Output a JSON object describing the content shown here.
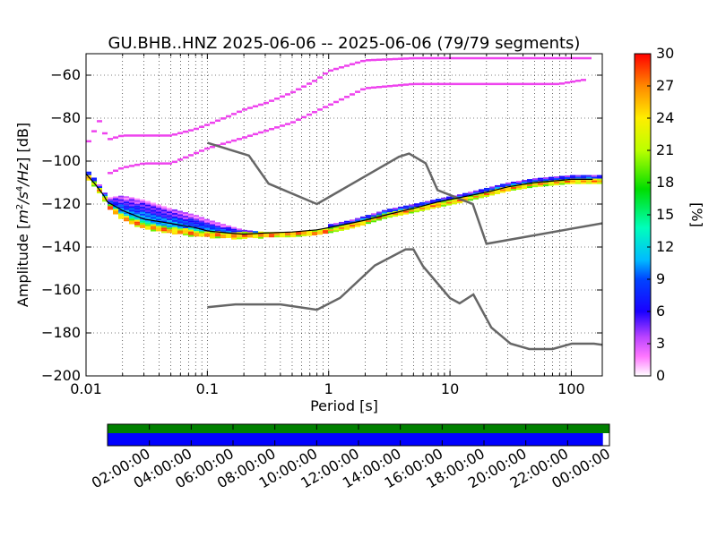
{
  "chart_data": [
    {
      "type": "heatmap",
      "title": "GU.BHB..HNZ   2025-06-06 -- 2025-06-06  (79/79 segments)",
      "xlabel": "Period [s]",
      "ylabel": "Amplitude [m²/s⁴/Hz] [dB]",
      "ylabel_parts": {
        "prefix": "Amplitude [",
        "unit": "m",
        "sq": "2",
        "mid": "/s",
        "four": "4",
        "hz": "/Hz",
        "suffix": "] [dB]"
      },
      "x_scale": "log",
      "xlim": [
        0.01,
        180
      ],
      "ylim": [
        -200,
        -50
      ],
      "x_tick_labels": [
        {
          "value": 0.01,
          "label": "0.01"
        },
        {
          "value": 0.1,
          "label": "0.1"
        },
        {
          "value": 1,
          "label": "1"
        },
        {
          "value": 10,
          "label": "10"
        },
        {
          "value": 100,
          "label": "100"
        }
      ],
      "y_ticks": [
        -200,
        -180,
        -160,
        -140,
        -120,
        -100,
        -80,
        -60
      ],
      "grid": true,
      "colorbar": {
        "label": "[%]",
        "range": [
          0,
          30
        ],
        "ticks": [
          0,
          3,
          6,
          9,
          12,
          15,
          18,
          21,
          24,
          27,
          30
        ]
      },
      "noise_models": {
        "color": "#666666",
        "high_noise_model": {
          "period": [
            0.1,
            0.22,
            0.32,
            0.8,
            3.8,
            4.6,
            6.3,
            7.9,
            15.4,
            20,
            354.8
          ],
          "db": [
            -91.5,
            -97.4,
            -110.5,
            -120,
            -98,
            -96.5,
            -101,
            -113.5,
            -120,
            -138.5,
            -126
          ]
        },
        "low_noise_model": {
          "period": [
            0.1,
            0.17,
            0.4,
            0.8,
            1.24,
            2.4,
            4.3,
            5,
            6,
            10,
            12,
            15.6,
            21.9,
            31.6,
            45,
            70,
            101,
            154,
            328
          ],
          "db": [
            -168,
            -166.7,
            -166.7,
            -169.2,
            -163.7,
            -148.6,
            -141.1,
            -141.1,
            -149,
            -163.8,
            -166.2,
            -162.1,
            -177.5,
            -185,
            -187.5,
            -187.5,
            -185,
            -185,
            -187.5
          ]
        }
      },
      "mean_psd": {
        "color": "#000000",
        "period": [
          0.01,
          0.012,
          0.014,
          0.015,
          0.02,
          0.03,
          0.05,
          0.08,
          0.1,
          0.15,
          0.2,
          0.3,
          0.5,
          0.8,
          1,
          1.5,
          2,
          3,
          5,
          8,
          12,
          20,
          30,
          50,
          80,
          100,
          150
        ],
        "db": [
          -106,
          -111,
          -116,
          -119,
          -123,
          -127,
          -129,
          -131,
          -132.5,
          -133.5,
          -134,
          -133.5,
          -133,
          -132,
          -131,
          -129,
          -127.5,
          -125,
          -122,
          -119,
          -117,
          -114.5,
          -112,
          -110,
          -109,
          -108.5,
          -108.5
        ]
      },
      "probability_ridge": {
        "period": [
          0.01,
          0.012,
          0.014,
          0.015,
          0.02,
          0.03,
          0.05,
          0.08,
          0.1,
          0.15,
          0.2,
          0.3,
          0.5,
          0.8,
          1,
          1.5,
          2,
          3,
          5,
          8,
          12,
          20,
          30,
          50,
          80,
          100,
          150
        ],
        "db": [
          -106,
          -111,
          -116,
          -120,
          -126,
          -130,
          -132,
          -133.5,
          -134,
          -134.5,
          -134.5,
          -134,
          -133.5,
          -133,
          -132,
          -130,
          -128,
          -125,
          -122.5,
          -120,
          -118,
          -115,
          -112.5,
          -110.5,
          -109.5,
          -109,
          -109
        ]
      },
      "probability_upper_band": {
        "period": [
          0.015,
          0.02,
          0.03,
          0.05,
          0.08,
          0.1,
          0.15,
          0.2,
          0.3,
          0.5,
          0.8,
          1
        ],
        "db": [
          -117,
          -116,
          -118,
          -122,
          -125,
          -127,
          -130,
          -132,
          -133,
          -133,
          -132,
          -131
        ]
      },
      "upper_outliers": [
        {
          "period": [
            0.01,
            0.013,
            0.015,
            0.02,
            0.03,
            0.05,
            0.08,
            0.1,
            0.15,
            0.2,
            0.3,
            0.5,
            0.8,
            1,
            2,
            5,
            10,
            20,
            50,
            100,
            150
          ],
          "db": [
            -93,
            -81,
            -90,
            -88,
            -88,
            -88,
            -85,
            -83,
            -79,
            -76,
            -73,
            -68,
            -62,
            -58,
            -53,
            -52,
            -52,
            -52,
            -52,
            -52,
            -52
          ]
        },
        {
          "period": [
            0.015,
            0.02,
            0.03,
            0.05,
            0.1,
            0.2,
            0.5,
            1,
            2,
            5,
            10,
            20,
            50,
            80,
            100,
            130
          ],
          "db": [
            -106,
            -103,
            -101,
            -101,
            -94,
            -89,
            -82,
            -74,
            -66,
            -64,
            -64,
            -64,
            -64,
            -64,
            -63,
            -62
          ]
        }
      ]
    },
    {
      "type": "bar",
      "title": "",
      "x_tick_labels": [
        "02:00:00",
        "04:00:00",
        "06:00:00",
        "08:00:00",
        "10:00:00",
        "12:00:00",
        "14:00:00",
        "16:00:00",
        "18:00:00",
        "20:00:00",
        "22:00:00",
        "00:00:00"
      ],
      "series": [
        {
          "color": "#008000",
          "coverage": [
            [
              0.0,
              1.0
            ]
          ]
        },
        {
          "color": "#0000ff",
          "coverage": [
            [
              0.0,
              0.987
            ]
          ]
        }
      ]
    }
  ]
}
